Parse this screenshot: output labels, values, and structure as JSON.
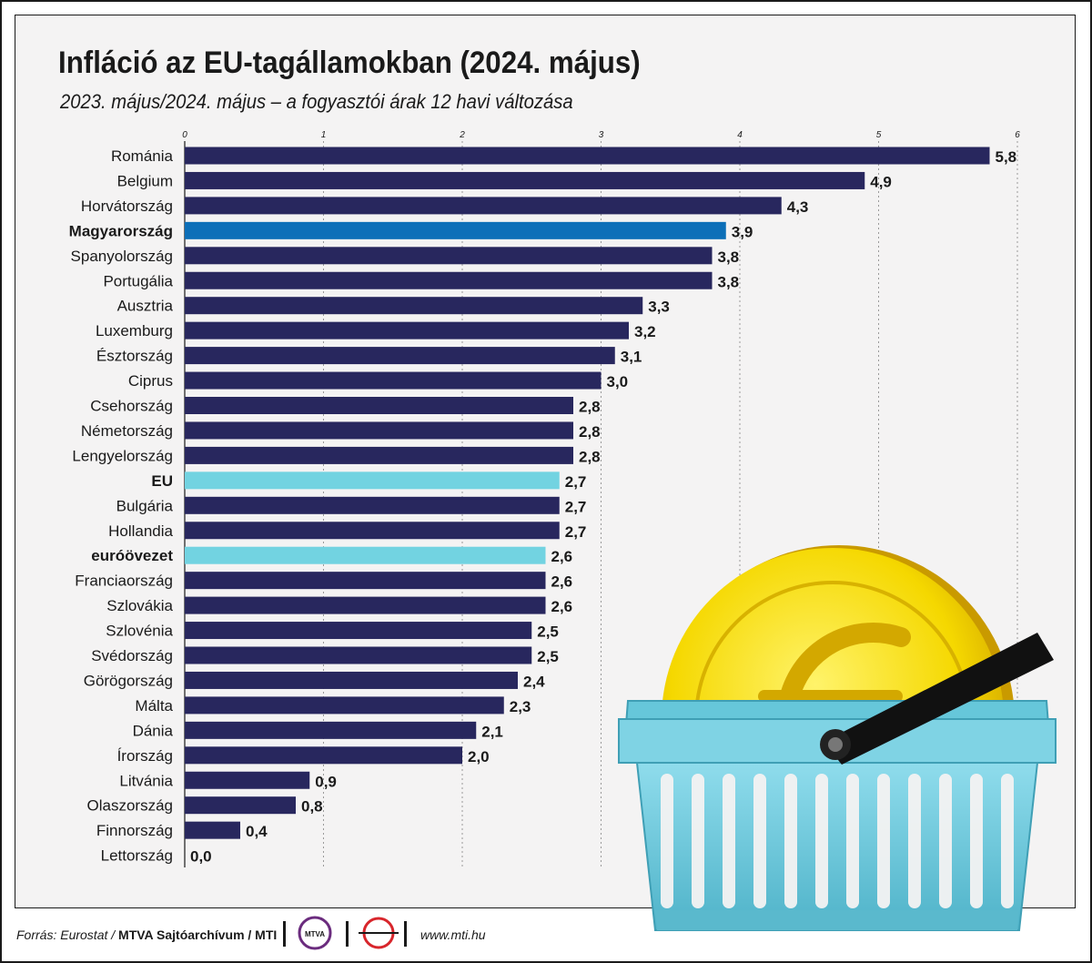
{
  "header": {
    "title": "Infláció az EU-tagállamokban (2024. május)",
    "subtitle": "2023. május/2024. május – a fogyasztói árak 12 havi változása"
  },
  "chart_data": {
    "type": "bar",
    "orientation": "horizontal",
    "xlim": [
      0,
      6
    ],
    "ticks": [
      "0",
      "1",
      "2",
      "3",
      "4",
      "5",
      "6"
    ],
    "grid": true,
    "categories": [
      "Románia",
      "Belgium",
      "Horvátország",
      "Magyarország",
      "Spanyolország",
      "Portugália",
      "Ausztria",
      "Luxemburg",
      "Észtország",
      "Ciprus",
      "Csehország",
      "Németország",
      "Lengyelország",
      "EU",
      "Bulgária",
      "Hollandia",
      "euróövezet",
      "Franciaország",
      "Szlovákia",
      "Szlovénia",
      "Svédország",
      "Görögország",
      "Málta",
      "Dánia",
      "Írország",
      "Litvánia",
      "Olaszország",
      "Finnország",
      "Lettország"
    ],
    "values": [
      5.8,
      4.9,
      4.3,
      3.9,
      3.8,
      3.8,
      3.3,
      3.2,
      3.1,
      3.0,
      2.8,
      2.8,
      2.8,
      2.7,
      2.7,
      2.7,
      2.6,
      2.6,
      2.6,
      2.5,
      2.5,
      2.4,
      2.3,
      2.1,
      2.0,
      0.9,
      0.8,
      0.4,
      0.0
    ],
    "value_labels": [
      "5,8",
      "4,9",
      "4,3",
      "3,9",
      "3,8",
      "3,8",
      "3,3",
      "3,2",
      "3,1",
      "3,0",
      "2,8",
      "2,8",
      "2,8",
      "2,7",
      "2,7",
      "2,7",
      "2,6",
      "2,6",
      "2,6",
      "2,5",
      "2,5",
      "2,4",
      "2,3",
      "2,1",
      "2,0",
      "0,9",
      "0,8",
      "0,4",
      "0,0"
    ],
    "highlight_bold": [
      "Magyarország",
      "EU",
      "euróövezet"
    ],
    "colors": {
      "default": "#28275e",
      "Magyarország": "#0d6fb8",
      "EU": "#72d3e1",
      "euróövezet": "#72d3e1",
      "grid": "#9a9a9a"
    }
  },
  "illustration": {
    "icon": "shopping-basket-with-euro-coin-icon",
    "colors": {
      "basket": "#73cde0",
      "coin": "#f5d800",
      "handle": "#111111"
    }
  },
  "footer": {
    "source_prefix": "Forrás: Eurostat / ",
    "source_bold": "MTVA Sajtóarchívum / MTI",
    "mtva_logo_text": "MTVA",
    "url": "www.mti.hu"
  }
}
